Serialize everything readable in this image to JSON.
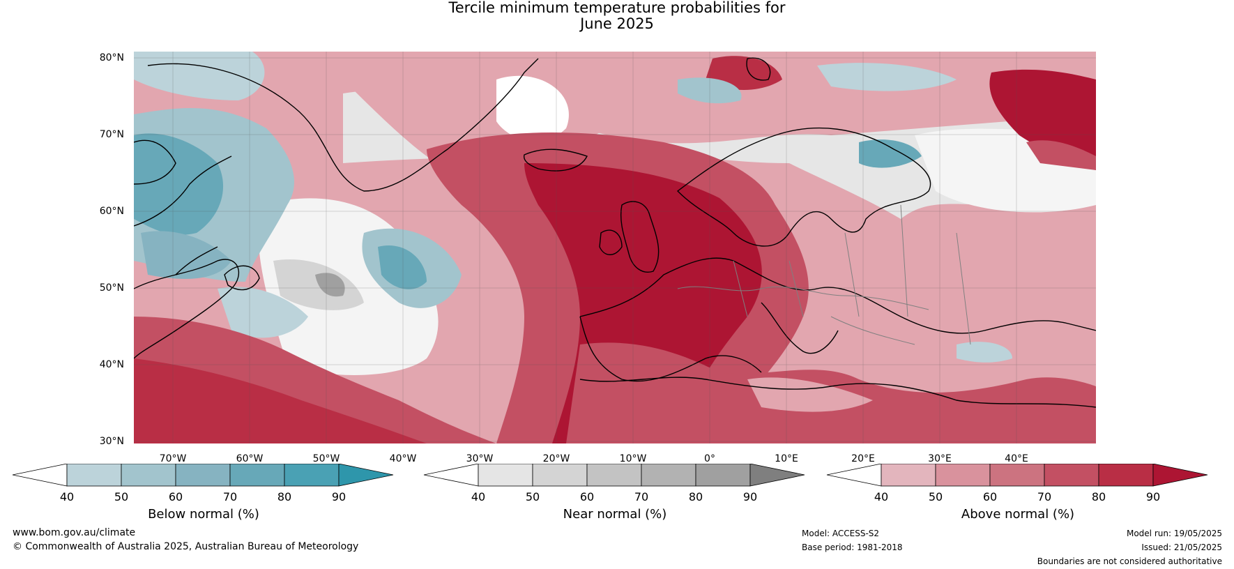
{
  "title": {
    "line1": "Tercile minimum temperature probabilities for",
    "line2": "June 2025"
  },
  "map": {
    "lat_labels": [
      "80°N",
      "70°N",
      "60°N",
      "50°N",
      "40°N",
      "30°N"
    ],
    "lon_labels": [
      "70°W",
      "60°W",
      "50°W",
      "40°W",
      "30°W",
      "20°W",
      "10°W",
      "0°",
      "10°E",
      "20°E",
      "30°E",
      "40°E"
    ],
    "colors": {
      "ocean_base": "#e2a6af",
      "coastline": "#000000",
      "border": "#808080",
      "gridline": "#555555"
    }
  },
  "colorbars": [
    {
      "id": "below",
      "label": "Below normal (%)",
      "ticks": [
        "40",
        "50",
        "60",
        "70",
        "80",
        "90"
      ],
      "colors": [
        "#ffffff",
        "#bcd3da",
        "#a2c4cd",
        "#86b3c1",
        "#67a8b8",
        "#4aa1b4",
        "#2e96ab"
      ]
    },
    {
      "id": "near",
      "label": "Near normal (%)",
      "ticks": [
        "40",
        "50",
        "60",
        "70",
        "80",
        "90"
      ],
      "colors": [
        "#ffffff",
        "#e5e5e5",
        "#d4d4d4",
        "#c3c3c3",
        "#b2b2b2",
        "#a0a0a0",
        "#7f7f7f"
      ]
    },
    {
      "id": "above",
      "label": "Above normal (%)",
      "ticks": [
        "40",
        "50",
        "60",
        "70",
        "80",
        "90"
      ],
      "colors": [
        "#ffffff",
        "#e3b5bd",
        "#d9929d",
        "#cc7380",
        "#c35063",
        "#b92e45",
        "#ad1533"
      ]
    }
  ],
  "footer": {
    "website": "www.bom.gov.au/climate",
    "copyright": "© Commonwealth of Australia 2025, Australian Bureau of Meteorology",
    "model": "Model: ACCESS-S2",
    "base_period": "Base period: 1981-2018",
    "model_run": "Model run: 19/05/2025",
    "issued": "Issued: 21/05/2025",
    "disclaimer": "Boundaries are not considered authoritative"
  }
}
